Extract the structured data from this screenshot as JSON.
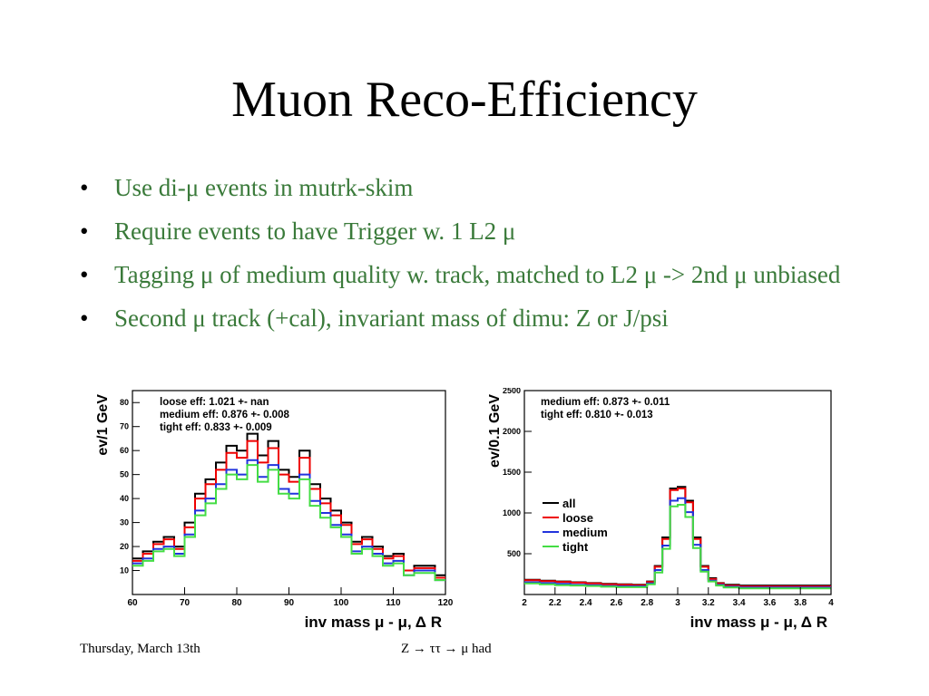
{
  "slide": {
    "title": "Muon Reco-Efficiency",
    "bullets": [
      "Use di-μ events in mutrk-skim",
      "Require events to have Trigger w. 1 L2 μ",
      "Tagging μ  of medium quality w. track, matched to L2 μ -> 2nd μ unbiased",
      "Second μ track (+cal), invariant mass of dimu: Z or J/psi"
    ],
    "footer_date": "Thursday, March 13th",
    "footer_process": "Z  → ττ → μ had"
  },
  "chart_data": [
    {
      "type": "line",
      "step": true,
      "ylabel": "ev/1 GeV",
      "xlabel": "inv mass  μ - μ, Δ R",
      "xlim": [
        60,
        120
      ],
      "ylim": [
        0,
        85
      ],
      "xticks": [
        60,
        70,
        80,
        90,
        100,
        110,
        120
      ],
      "xtick_labels": [
        "60",
        "70",
        "80",
        "90",
        "100",
        "110",
        "120"
      ],
      "yticks": [
        10,
        20,
        30,
        40,
        50,
        60,
        70,
        80
      ],
      "ytick_labels": [
        "10",
        "20",
        "30",
        "40",
        "50",
        "60",
        "70",
        "80"
      ],
      "annotations": [
        "loose eff: 1.021    +-  nan",
        "medium eff: 0.876    +- 0.008",
        "tight eff: 0.833    +- 0.009"
      ],
      "x_edges": [
        60,
        62,
        64,
        66,
        68,
        70,
        72,
        74,
        76,
        78,
        80,
        82,
        84,
        86,
        88,
        90,
        92,
        94,
        96,
        98,
        100,
        102,
        104,
        106,
        108,
        110,
        112,
        114,
        116,
        118,
        120
      ],
      "series": [
        {
          "color": "#000000",
          "values": [
            15,
            18,
            22,
            24,
            20,
            30,
            42,
            48,
            55,
            62,
            60,
            67,
            58,
            64,
            52,
            49,
            60,
            46,
            40,
            35,
            30,
            22,
            24,
            20,
            16,
            17,
            10,
            12,
            12,
            8
          ]
        },
        {
          "color": "#ee0000",
          "values": [
            14,
            17,
            21,
            23,
            19,
            28,
            40,
            46,
            52,
            59,
            57,
            64,
            55,
            61,
            50,
            47,
            57,
            44,
            38,
            33,
            29,
            21,
            23,
            19,
            15,
            16,
            10,
            11,
            11,
            7
          ]
        },
        {
          "color": "#2233dd",
          "values": [
            13,
            15,
            19,
            20,
            17,
            25,
            35,
            40,
            46,
            52,
            50,
            56,
            49,
            54,
            44,
            42,
            50,
            39,
            34,
            29,
            25,
            18,
            20,
            17,
            13,
            14,
            8,
            10,
            10,
            6
          ]
        },
        {
          "color": "#44dd44",
          "values": [
            12,
            14,
            18,
            19,
            16,
            24,
            33,
            38,
            44,
            50,
            48,
            54,
            47,
            52,
            42,
            40,
            48,
            37,
            32,
            28,
            24,
            17,
            19,
            16,
            12,
            13,
            8,
            9,
            9,
            6
          ]
        }
      ]
    },
    {
      "type": "line",
      "step": true,
      "ylabel": "ev/0.1 GeV",
      "xlabel": "inv mass  μ - μ, Δ R",
      "xlim": [
        2,
        4
      ],
      "ylim": [
        0,
        2500
      ],
      "xticks": [
        2,
        2.2,
        2.4,
        2.6,
        2.8,
        3,
        3.2,
        3.4,
        3.6,
        3.8,
        4
      ],
      "xtick_labels": [
        "2",
        "2.2",
        "2.4",
        "2.6",
        "2.8",
        "3",
        "3.2",
        "3.4",
        "3.6",
        "3.8",
        "4"
      ],
      "yticks": [
        500,
        1000,
        1500,
        2000,
        2500
      ],
      "ytick_labels": [
        "500",
        "1000",
        "1500",
        "2000",
        "2500"
      ],
      "annotations": [
        "medium eff: 0.873    +- 0.011",
        "tight eff: 0.810    +- 0.013"
      ],
      "legend": {
        "position": "center-left",
        "entries": [
          "all",
          "loose",
          "medium",
          "tight"
        ]
      },
      "x_edges": [
        2.0,
        2.1,
        2.2,
        2.3,
        2.4,
        2.5,
        2.6,
        2.7,
        2.8,
        2.85,
        2.9,
        2.95,
        3.0,
        3.05,
        3.1,
        3.15,
        3.2,
        3.25,
        3.3,
        3.4,
        3.5,
        3.6,
        3.7,
        3.8,
        3.9,
        4.0
      ],
      "series": [
        {
          "name": "all",
          "color": "#000000",
          "values": [
            180,
            170,
            160,
            150,
            140,
            130,
            125,
            120,
            160,
            350,
            700,
            1300,
            1320,
            1150,
            700,
            350,
            200,
            140,
            120,
            110,
            110,
            110,
            110,
            110,
            110
          ]
        },
        {
          "name": "loose",
          "color": "#ee0000",
          "values": [
            175,
            165,
            155,
            145,
            135,
            125,
            120,
            115,
            155,
            340,
            680,
            1280,
            1300,
            1130,
            680,
            340,
            190,
            135,
            110,
            100,
            100,
            100,
            100,
            100,
            100
          ]
        },
        {
          "name": "medium",
          "color": "#2233dd",
          "values": [
            150,
            140,
            130,
            120,
            115,
            105,
            100,
            100,
            135,
            300,
            600,
            1150,
            1180,
            1010,
            610,
            300,
            170,
            120,
            95,
            85,
            85,
            85,
            85,
            85,
            85
          ]
        },
        {
          "name": "tight",
          "color": "#44dd44",
          "values": [
            135,
            125,
            115,
            110,
            105,
            95,
            90,
            90,
            125,
            270,
            560,
            1080,
            1100,
            950,
            570,
            280,
            160,
            110,
            85,
            75,
            75,
            75,
            75,
            75,
            75
          ]
        }
      ]
    }
  ]
}
